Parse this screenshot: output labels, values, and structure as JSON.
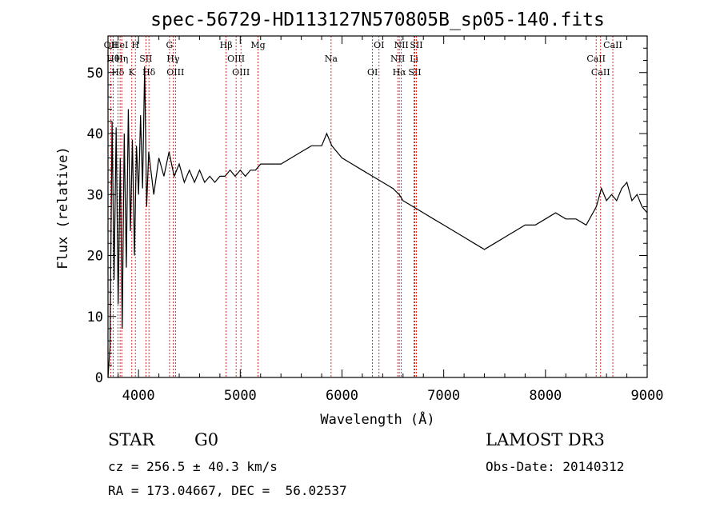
{
  "chart_data": {
    "type": "line",
    "title": "spec-56729-HD113127N570805B_sp05-140.fits",
    "xlabel": "Wavelength (Å)",
    "ylabel": "Flux (relative)",
    "xlim": [
      3700,
      9000
    ],
    "ylim": [
      0,
      56
    ],
    "xticks": [
      4000,
      5000,
      6000,
      7000,
      8000,
      9000
    ],
    "yticks": [
      0,
      10,
      20,
      30,
      40,
      50
    ],
    "series": [
      {
        "name": "spectrum",
        "x": [
          3700,
          3720,
          3740,
          3760,
          3780,
          3800,
          3820,
          3840,
          3860,
          3880,
          3900,
          3920,
          3940,
          3960,
          3980,
          4000,
          4020,
          4040,
          4060,
          4080,
          4100,
          4150,
          4200,
          4250,
          4300,
          4350,
          4400,
          4450,
          4500,
          4550,
          4600,
          4650,
          4700,
          4750,
          4800,
          4850,
          4900,
          4950,
          5000,
          5050,
          5100,
          5150,
          5200,
          5300,
          5400,
          5500,
          5600,
          5700,
          5800,
          5850,
          5900,
          5950,
          6000,
          6100,
          6200,
          6300,
          6400,
          6500,
          6562,
          6600,
          6700,
          6800,
          6900,
          7000,
          7100,
          7200,
          7300,
          7400,
          7500,
          7600,
          7700,
          7800,
          7900,
          8000,
          8100,
          8200,
          8300,
          8400,
          8500,
          8550,
          8600,
          8650,
          8700,
          8750,
          8800,
          8850,
          8900,
          8950,
          9000
        ],
        "values": [
          0,
          5,
          42,
          16,
          41,
          12,
          36,
          8,
          40,
          18,
          44,
          24,
          39,
          20,
          38,
          30,
          43,
          31,
          51,
          28,
          37,
          30,
          36,
          33,
          37,
          33,
          35,
          32,
          34,
          32,
          34,
          32,
          33,
          32,
          33,
          33,
          34,
          33,
          34,
          33,
          34,
          34,
          35,
          35,
          35,
          36,
          37,
          38,
          38,
          40,
          38,
          37,
          36,
          35,
          34,
          33,
          32,
          31,
          30,
          29,
          28,
          27,
          26,
          25,
          24,
          23,
          22,
          21,
          22,
          23,
          24,
          25,
          25,
          26,
          27,
          26,
          26,
          25,
          28,
          31,
          29,
          30,
          29,
          31,
          32,
          29,
          30,
          28,
          27
        ]
      }
    ],
    "spectral_lines": [
      {
        "label": "OII",
        "x": 3727
      },
      {
        "label": "Hθ",
        "x": 3750
      },
      {
        "label": "Hδ",
        "x": 3797
      },
      {
        "label": "HeI",
        "x": 3819
      },
      {
        "label": "Hη",
        "x": 3835
      },
      {
        "label": "K",
        "x": 3934
      },
      {
        "label": "H",
        "x": 3969
      },
      {
        "label": "SII",
        "x": 4072
      },
      {
        "label": "Hδ",
        "x": 4102
      },
      {
        "label": "G",
        "x": 4305
      },
      {
        "label": "Hγ",
        "x": 4340
      },
      {
        "label": "OIII",
        "x": 4363
      },
      {
        "label": "Hβ",
        "x": 4861
      },
      {
        "label": "OIII",
        "x": 4959
      },
      {
        "label": "OIII",
        "x": 5007
      },
      {
        "label": "Mg",
        "x": 5175
      },
      {
        "label": "Na",
        "x": 5893
      },
      {
        "label": "OI",
        "x": 6300
      },
      {
        "label": "OI",
        "x": 6364
      },
      {
        "label": "NII",
        "x": 6548
      },
      {
        "label": "Hα",
        "x": 6563
      },
      {
        "label": "NII",
        "x": 6583
      },
      {
        "label": "Li",
        "x": 6708
      },
      {
        "label": "SII",
        "x": 6716
      },
      {
        "label": "SII",
        "x": 6731
      },
      {
        "label": "CaII",
        "x": 8498
      },
      {
        "label": "CaII",
        "x": 8542
      },
      {
        "label": "CaII",
        "x": 8662
      }
    ]
  },
  "info": {
    "object_class": "STAR",
    "subclass": "G0",
    "survey": "LAMOST DR3",
    "cz": "cz = 256.5 ± 40.3 km/s",
    "obs_date": "Obs-Date: 20140312",
    "radec": "RA = 173.04667, DEC =  56.02537"
  }
}
